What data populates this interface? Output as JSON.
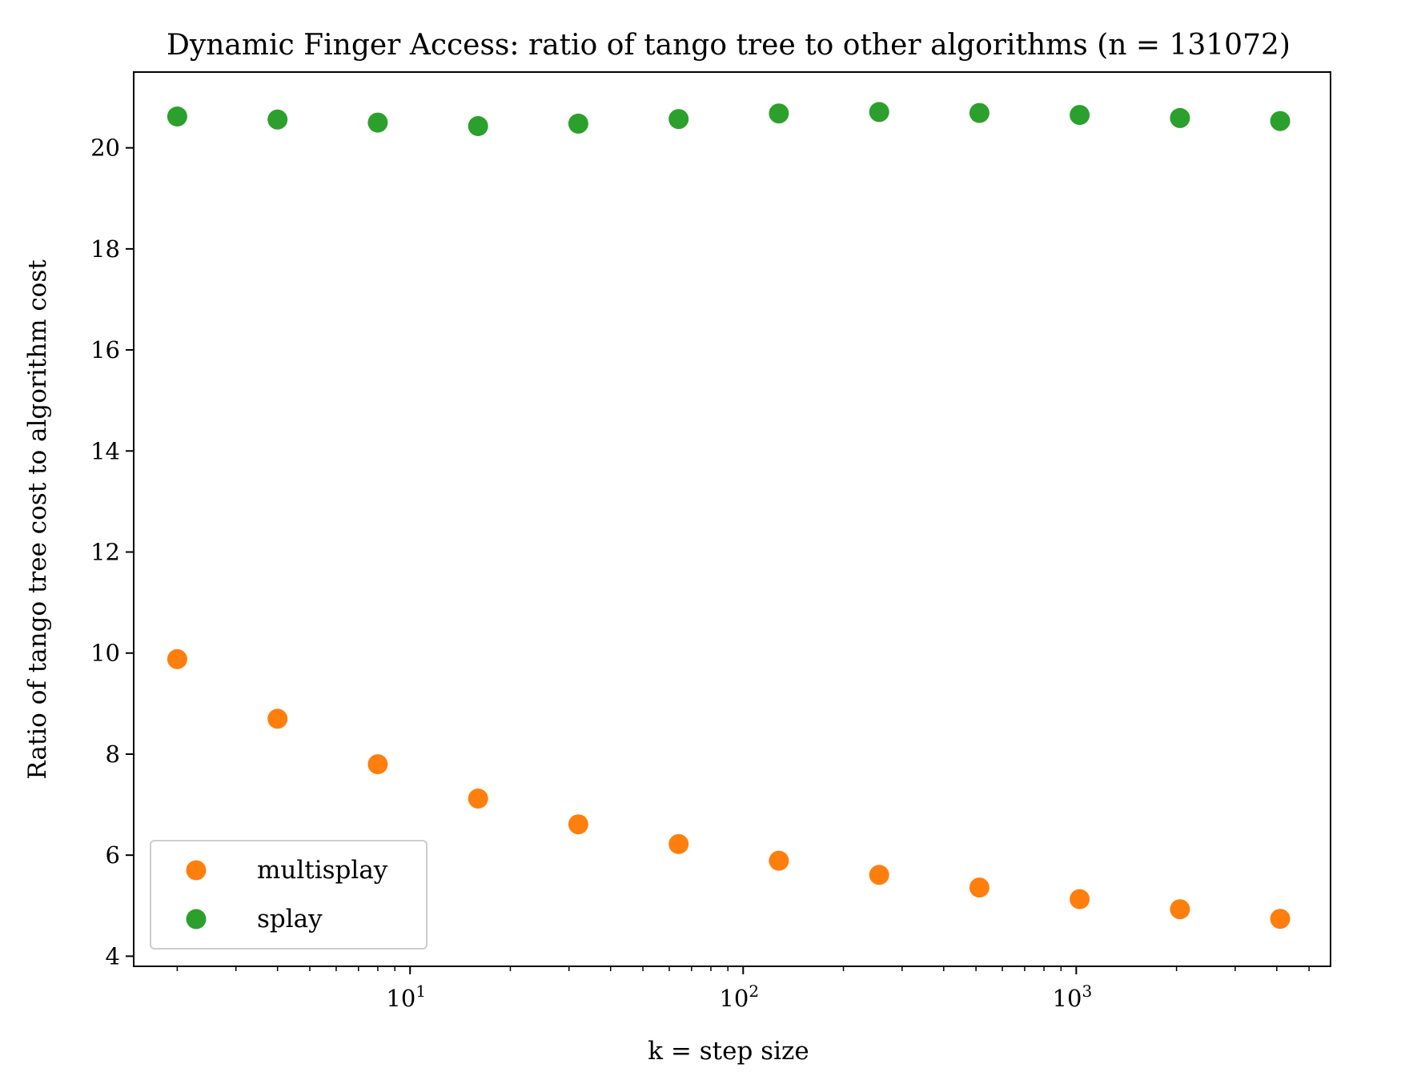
{
  "chart_data": {
    "type": "scatter",
    "title": "Dynamic Finger Access: ratio of tango tree to other algorithms (n = 131072)",
    "xlabel": "k = step size",
    "ylabel": "Ratio of tango tree cost to algorithm cost",
    "x_scale": "log",
    "xlim": [
      1.48,
      5800
    ],
    "ylim": [
      3.8,
      21.5
    ],
    "x_ticks": [
      {
        "value": 10,
        "base": "10",
        "exp": "1"
      },
      {
        "value": 100,
        "base": "10",
        "exp": "2"
      },
      {
        "value": 1000,
        "base": "10",
        "exp": "3"
      }
    ],
    "y_ticks": [
      4,
      6,
      8,
      10,
      12,
      14,
      16,
      18,
      20
    ],
    "grid": false,
    "legend_position": "lower-left",
    "x": [
      2,
      4,
      8,
      16,
      32,
      64,
      128,
      256,
      512,
      1024,
      2048,
      4096
    ],
    "series": [
      {
        "name": "multisplay",
        "color": "#ff7f0e",
        "values": [
          9.88,
          8.7,
          7.8,
          7.12,
          6.61,
          6.22,
          5.89,
          5.61,
          5.36,
          5.13,
          4.93,
          4.74
        ]
      },
      {
        "name": "splay",
        "color": "#2ca02c",
        "values": [
          20.62,
          20.56,
          20.5,
          20.43,
          20.48,
          20.57,
          20.68,
          20.71,
          20.69,
          20.65,
          20.59,
          20.53
        ]
      }
    ]
  }
}
